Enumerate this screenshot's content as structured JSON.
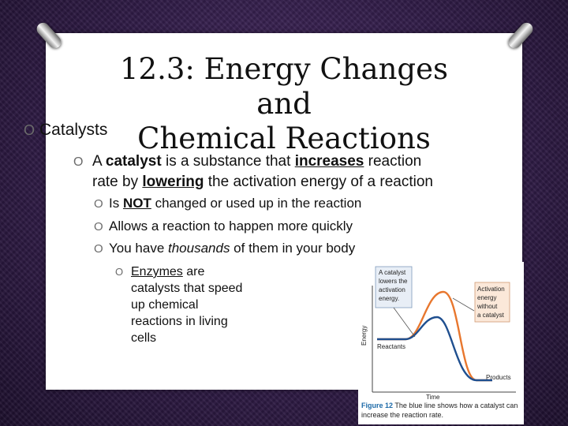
{
  "slide": {
    "title_line1": "12.3: Energy Changes and",
    "title_line2": "Chemical Reactions",
    "bullet_marker": "O",
    "level1": "Catalysts",
    "level2": {
      "part1": "A ",
      "catalyst": "catalyst",
      "part2": " is a substance that ",
      "increases": "increases",
      "part3": " reaction",
      "part4": "rate by ",
      "lowering": "lowering",
      "part5": " the activation energy of a reaction"
    },
    "level3": [
      {
        "pre": "Is ",
        "emph": "NOT",
        "post": " changed or used up in the reaction"
      },
      {
        "pre": "Allows a reaction to happen more quickly",
        "emph": "",
        "post": ""
      },
      {
        "pre": "You have ",
        "emph": "thousands",
        "post": " of them in your body"
      }
    ],
    "level4": {
      "enzymes": "Enzymes",
      "rest1": " are",
      "rest2": "catalysts that speed",
      "rest3": "up chemical",
      "rest4": "reactions in living",
      "rest5": "cells"
    }
  },
  "figure": {
    "callout_left": [
      "A catalyst",
      "lowers the",
      "activation",
      "energy."
    ],
    "callout_right": [
      "Activation",
      "energy",
      "without",
      "a catalyst"
    ],
    "y_label": "Energy",
    "x_label": "Time",
    "reactants": "Reactants",
    "products": "Products",
    "caption_label": "Figure 12",
    "caption_text": " The blue line shows how a catalyst can increase the reaction rate.",
    "colors": {
      "uncatalyzed": "#e8772e",
      "catalyzed": "#1f4f8f",
      "callout_left_bg": "#e8eef6",
      "callout_right_bg": "#fbe8d9"
    }
  }
}
